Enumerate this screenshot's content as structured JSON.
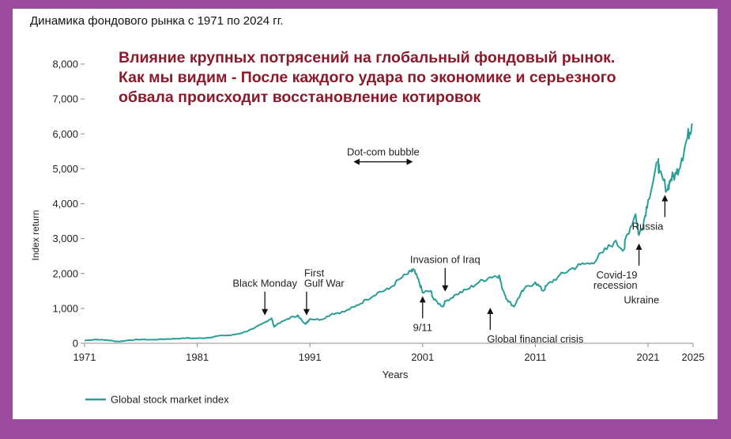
{
  "page_title": "Динамика фондового рынка с 1971 по 2024 гг.",
  "headline_lines": [
    "Влияние крупных потрясений на глобальный фондовый рынок.",
    "Как мы видим - После каждого удара по экономике и серьезного",
    "обвала происходит восстановление котировок"
  ],
  "colors": {
    "background": "#9b4a9f",
    "panel": "#ffffff",
    "line": "#2a9d96",
    "headline": "#8b1a2c",
    "axis": "#8c8c8c",
    "text": "#222222"
  },
  "chart_data": {
    "type": "line",
    "title": "Динамика фондового рынка с 1971 по 2024 гг.",
    "xlabel": "Years",
    "ylabel": "Index return",
    "xlim": [
      1971,
      2025
    ],
    "ylim": [
      0,
      8000
    ],
    "x_ticks": [
      1971,
      1981,
      1991,
      2001,
      2011,
      2021,
      2025
    ],
    "y_ticks": [
      0,
      1000,
      2000,
      3000,
      4000,
      5000,
      6000,
      7000,
      8000
    ],
    "y_tick_labels": [
      "0",
      "1,000",
      "2,000",
      "3,000",
      "4,000",
      "5,000",
      "6,000",
      "7,000",
      "8,000"
    ],
    "grid": false,
    "legend_position": "bottom-left",
    "series": [
      {
        "name": "Global stock market index",
        "x": [
          1971,
          1972,
          1973,
          1974,
          1975,
          1976,
          1977,
          1978,
          1979,
          1980,
          1981,
          1982,
          1983,
          1984,
          1985,
          1986,
          1987,
          1987.6,
          1987.8,
          1988,
          1989,
          1989.9,
          1990,
          1990.6,
          1990.8,
          1991,
          1992,
          1993,
          1994,
          1995,
          1996,
          1997,
          1998,
          1999,
          2000,
          2000.2,
          2000.7,
          2001,
          2001.7,
          2002,
          2002.8,
          2003,
          2004,
          2005,
          2006,
          2007,
          2007.8,
          2008,
          2008.5,
          2009.1,
          2009.5,
          2010,
          2011,
          2011.7,
          2012,
          2013,
          2014,
          2015,
          2016,
          2017,
          2018,
          2018.9,
          2019,
          2019.9,
          2020.2,
          2020.6,
          2021,
          2021.9,
          2022,
          2022.7,
          2023,
          2023.5,
          2024,
          2024.5,
          2024.9
        ],
        "values": [
          80,
          110,
          90,
          50,
          90,
          110,
          100,
          120,
          130,
          150,
          140,
          160,
          220,
          230,
          300,
          420,
          600,
          720,
          480,
          520,
          700,
          800,
          760,
          560,
          620,
          700,
          680,
          850,
          900,
          1050,
          1250,
          1450,
          1550,
          1850,
          2050,
          2100,
          1750,
          1450,
          1500,
          1250,
          1050,
          1200,
          1400,
          1550,
          1750,
          1900,
          1950,
          1650,
          1250,
          1050,
          1300,
          1550,
          1750,
          1500,
          1650,
          1900,
          2100,
          2250,
          2300,
          2600,
          2900,
          2700,
          3000,
          3700,
          3100,
          3450,
          4100,
          5200,
          4900,
          4400,
          4700,
          4850,
          5300,
          5900,
          6300
        ]
      }
    ],
    "annotations": [
      {
        "text": [
          "Black Monday"
        ],
        "x": 1987.0,
        "y": 800,
        "arrow": "down",
        "align": "middle"
      },
      {
        "text": [
          "First",
          "Gulf War"
        ],
        "x": 1990.7,
        "y": 800,
        "arrow": "down",
        "align": "start"
      },
      {
        "text": [
          "Invasion of Iraq"
        ],
        "x": 2003.0,
        "y": 1480,
        "arrow": "down",
        "align": "middle"
      },
      {
        "text": [
          "9/11"
        ],
        "x": 2001.0,
        "y": 1350,
        "arrow": "up",
        "align": "middle"
      },
      {
        "text": [
          "Global financial crisis"
        ],
        "x": 2007.0,
        "y": 1020,
        "arrow": "up",
        "align": "start"
      },
      {
        "text": [
          "Covid-19",
          "recession"
        ],
        "x": 2020.2,
        "y": 2860,
        "arrow": "up",
        "align": "end"
      },
      {
        "text": [
          "Russia"
        ],
        "x": 2022.5,
        "y": 4250,
        "arrow": "up",
        "align": "end"
      },
      {
        "text": [
          "Ukraine"
        ],
        "x": 2022.0,
        "y": 1150,
        "arrow": "none",
        "align": "end"
      }
    ],
    "range_annotation": {
      "text": "Dot-com bubble",
      "x_start": 1995.0,
      "x_end": 2000.0,
      "y": 5200
    }
  }
}
